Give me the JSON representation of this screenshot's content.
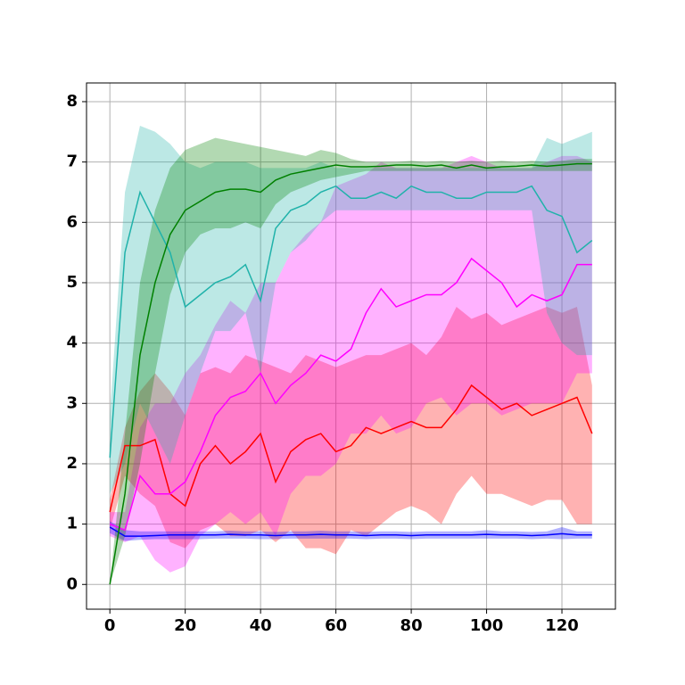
{
  "chart_data": {
    "type": "line",
    "x": [
      0,
      4,
      8,
      12,
      16,
      20,
      24,
      28,
      32,
      36,
      40,
      44,
      48,
      52,
      56,
      60,
      64,
      68,
      72,
      76,
      80,
      84,
      88,
      92,
      96,
      100,
      104,
      108,
      112,
      116,
      120,
      124,
      128
    ],
    "xlim": [
      -6.2,
      134.2
    ],
    "ylim": [
      -0.41,
      8.31
    ],
    "xticks": [
      0,
      20,
      40,
      60,
      80,
      100,
      120
    ],
    "yticks": [
      0,
      1,
      2,
      3,
      4,
      5,
      6,
      7,
      8
    ],
    "grid": true,
    "series": [
      {
        "color": "#ff0000",
        "values": [
          1.2,
          2.3,
          2.3,
          2.4,
          1.5,
          1.3,
          2.0,
          2.3,
          2.0,
          2.2,
          2.5,
          1.7,
          2.2,
          2.4,
          2.5,
          2.2,
          2.3,
          2.6,
          2.5,
          2.6,
          2.7,
          2.6,
          2.6,
          2.9,
          3.3,
          3.1,
          2.9,
          3.0,
          2.8,
          2.9,
          3.0,
          3.1,
          2.5
        ],
        "lower": [
          0.9,
          1.8,
          1.5,
          1.3,
          0.7,
          0.6,
          0.9,
          1.0,
          0.8,
          0.8,
          0.9,
          0.7,
          0.9,
          0.6,
          0.6,
          0.5,
          0.9,
          0.8,
          1.0,
          1.2,
          1.3,
          1.2,
          1.0,
          1.5,
          1.8,
          1.5,
          1.5,
          1.4,
          1.3,
          1.4,
          1.4,
          1.0,
          1.0
        ],
        "upper": [
          1.4,
          2.6,
          3.2,
          3.5,
          3.2,
          2.8,
          3.5,
          3.6,
          3.5,
          3.8,
          3.7,
          3.6,
          3.5,
          3.8,
          3.7,
          3.6,
          3.7,
          3.8,
          3.8,
          3.9,
          4.0,
          3.8,
          4.1,
          4.6,
          4.4,
          4.5,
          4.3,
          4.4,
          4.5,
          4.6,
          4.5,
          4.6,
          3.3
        ]
      },
      {
        "color": "#ff00ff",
        "values": [
          1.0,
          0.9,
          1.8,
          1.5,
          1.5,
          1.7,
          2.2,
          2.8,
          3.1,
          3.2,
          3.5,
          3.0,
          3.3,
          3.5,
          3.8,
          3.7,
          3.9,
          4.5,
          4.9,
          4.6,
          4.7,
          4.8,
          4.8,
          5.0,
          5.4,
          5.2,
          5.0,
          4.6,
          4.8,
          4.7,
          4.8,
          5.3,
          5.3
        ],
        "lower": [
          0.8,
          0.7,
          0.8,
          0.4,
          0.2,
          0.3,
          0.8,
          1.0,
          1.2,
          1.0,
          1.2,
          0.8,
          1.5,
          1.8,
          1.8,
          2.0,
          2.5,
          2.5,
          2.8,
          2.5,
          2.6,
          3.0,
          3.1,
          2.8,
          3.0,
          3.0,
          2.8,
          2.9,
          3.0,
          3.0,
          3.0,
          3.5,
          3.5
        ],
        "upper": [
          1.2,
          1.2,
          2.6,
          3.0,
          3.0,
          3.5,
          3.8,
          4.3,
          4.7,
          4.5,
          5.0,
          5.0,
          5.5,
          5.8,
          6.0,
          6.6,
          6.7,
          6.8,
          7.0,
          6.9,
          6.9,
          6.9,
          6.9,
          7.0,
          7.1,
          7.0,
          6.9,
          6.9,
          6.9,
          7.0,
          7.1,
          7.1,
          7.0
        ]
      },
      {
        "color": "#0000ff",
        "values": [
          0.95,
          0.8,
          0.8,
          0.81,
          0.82,
          0.82,
          0.82,
          0.82,
          0.83,
          0.82,
          0.82,
          0.81,
          0.82,
          0.82,
          0.83,
          0.82,
          0.82,
          0.81,
          0.82,
          0.82,
          0.81,
          0.82,
          0.82,
          0.82,
          0.82,
          0.83,
          0.82,
          0.82,
          0.81,
          0.82,
          0.84,
          0.82,
          0.82
        ],
        "lower": [
          0.85,
          0.72,
          0.74,
          0.75,
          0.75,
          0.75,
          0.75,
          0.76,
          0.76,
          0.76,
          0.75,
          0.75,
          0.76,
          0.76,
          0.76,
          0.76,
          0.76,
          0.75,
          0.76,
          0.76,
          0.75,
          0.76,
          0.76,
          0.76,
          0.76,
          0.76,
          0.76,
          0.76,
          0.75,
          0.76,
          0.75,
          0.76,
          0.76
        ],
        "upper": [
          1.05,
          0.9,
          0.88,
          0.88,
          0.88,
          0.88,
          0.88,
          0.88,
          0.89,
          0.88,
          0.88,
          0.87,
          0.88,
          0.88,
          0.89,
          0.88,
          0.88,
          0.87,
          0.88,
          0.88,
          0.87,
          0.88,
          0.88,
          0.88,
          0.88,
          0.9,
          0.88,
          0.88,
          0.87,
          0.88,
          0.95,
          0.88,
          0.88
        ]
      },
      {
        "color": "#20b2aa",
        "values": [
          2.1,
          5.5,
          6.5,
          6.0,
          5.5,
          4.6,
          4.8,
          5.0,
          5.1,
          5.3,
          4.7,
          5.9,
          6.2,
          6.3,
          6.5,
          6.6,
          6.4,
          6.4,
          6.5,
          6.4,
          6.6,
          6.5,
          6.5,
          6.4,
          6.4,
          6.5,
          6.5,
          6.5,
          6.6,
          6.2,
          6.1,
          5.5,
          5.7
        ],
        "lower": [
          1.5,
          2.0,
          3.0,
          2.5,
          2.0,
          2.8,
          3.5,
          4.2,
          4.2,
          4.5,
          3.5,
          5.0,
          5.5,
          5.7,
          6.0,
          6.2,
          6.2,
          6.2,
          6.2,
          6.2,
          6.2,
          6.2,
          6.2,
          6.2,
          6.2,
          6.2,
          6.2,
          6.2,
          6.2,
          4.5,
          4.0,
          3.8,
          3.8
        ],
        "upper": [
          2.8,
          6.5,
          7.6,
          7.5,
          7.3,
          7.0,
          6.9,
          7.0,
          7.0,
          7.0,
          6.9,
          6.9,
          6.9,
          6.9,
          7.0,
          6.9,
          6.9,
          6.9,
          6.9,
          6.9,
          6.9,
          6.9,
          6.9,
          6.9,
          6.9,
          6.9,
          6.9,
          6.9,
          6.9,
          7.4,
          7.3,
          7.4,
          7.5
        ]
      },
      {
        "color": "#008000",
        "values": [
          0,
          1.5,
          3.8,
          5.0,
          5.8,
          6.2,
          6.35,
          6.5,
          6.55,
          6.55,
          6.5,
          6.7,
          6.8,
          6.85,
          6.9,
          6.95,
          6.92,
          6.92,
          6.93,
          6.95,
          6.95,
          6.93,
          6.95,
          6.9,
          6.95,
          6.9,
          6.92,
          6.93,
          6.95,
          6.93,
          6.95,
          6.97,
          6.97
        ],
        "lower": [
          0,
          0.8,
          2.0,
          3.5,
          4.8,
          5.5,
          5.8,
          5.9,
          5.9,
          6.0,
          5.9,
          6.3,
          6.5,
          6.6,
          6.7,
          6.75,
          6.8,
          6.85,
          6.85,
          6.85,
          6.85,
          6.85,
          6.85,
          6.85,
          6.85,
          6.85,
          6.85,
          6.85,
          6.85,
          6.85,
          6.85,
          6.85,
          6.85
        ],
        "upper": [
          0,
          2.5,
          5.0,
          6.2,
          6.9,
          7.2,
          7.3,
          7.4,
          7.35,
          7.3,
          7.25,
          7.2,
          7.15,
          7.1,
          7.2,
          7.15,
          7.05,
          7.0,
          7.0,
          7.0,
          7.02,
          7.0,
          7.02,
          7.0,
          7.02,
          7.0,
          7.02,
          7.0,
          7.02,
          7.0,
          7.02,
          7.05,
          7.05
        ]
      }
    ]
  }
}
